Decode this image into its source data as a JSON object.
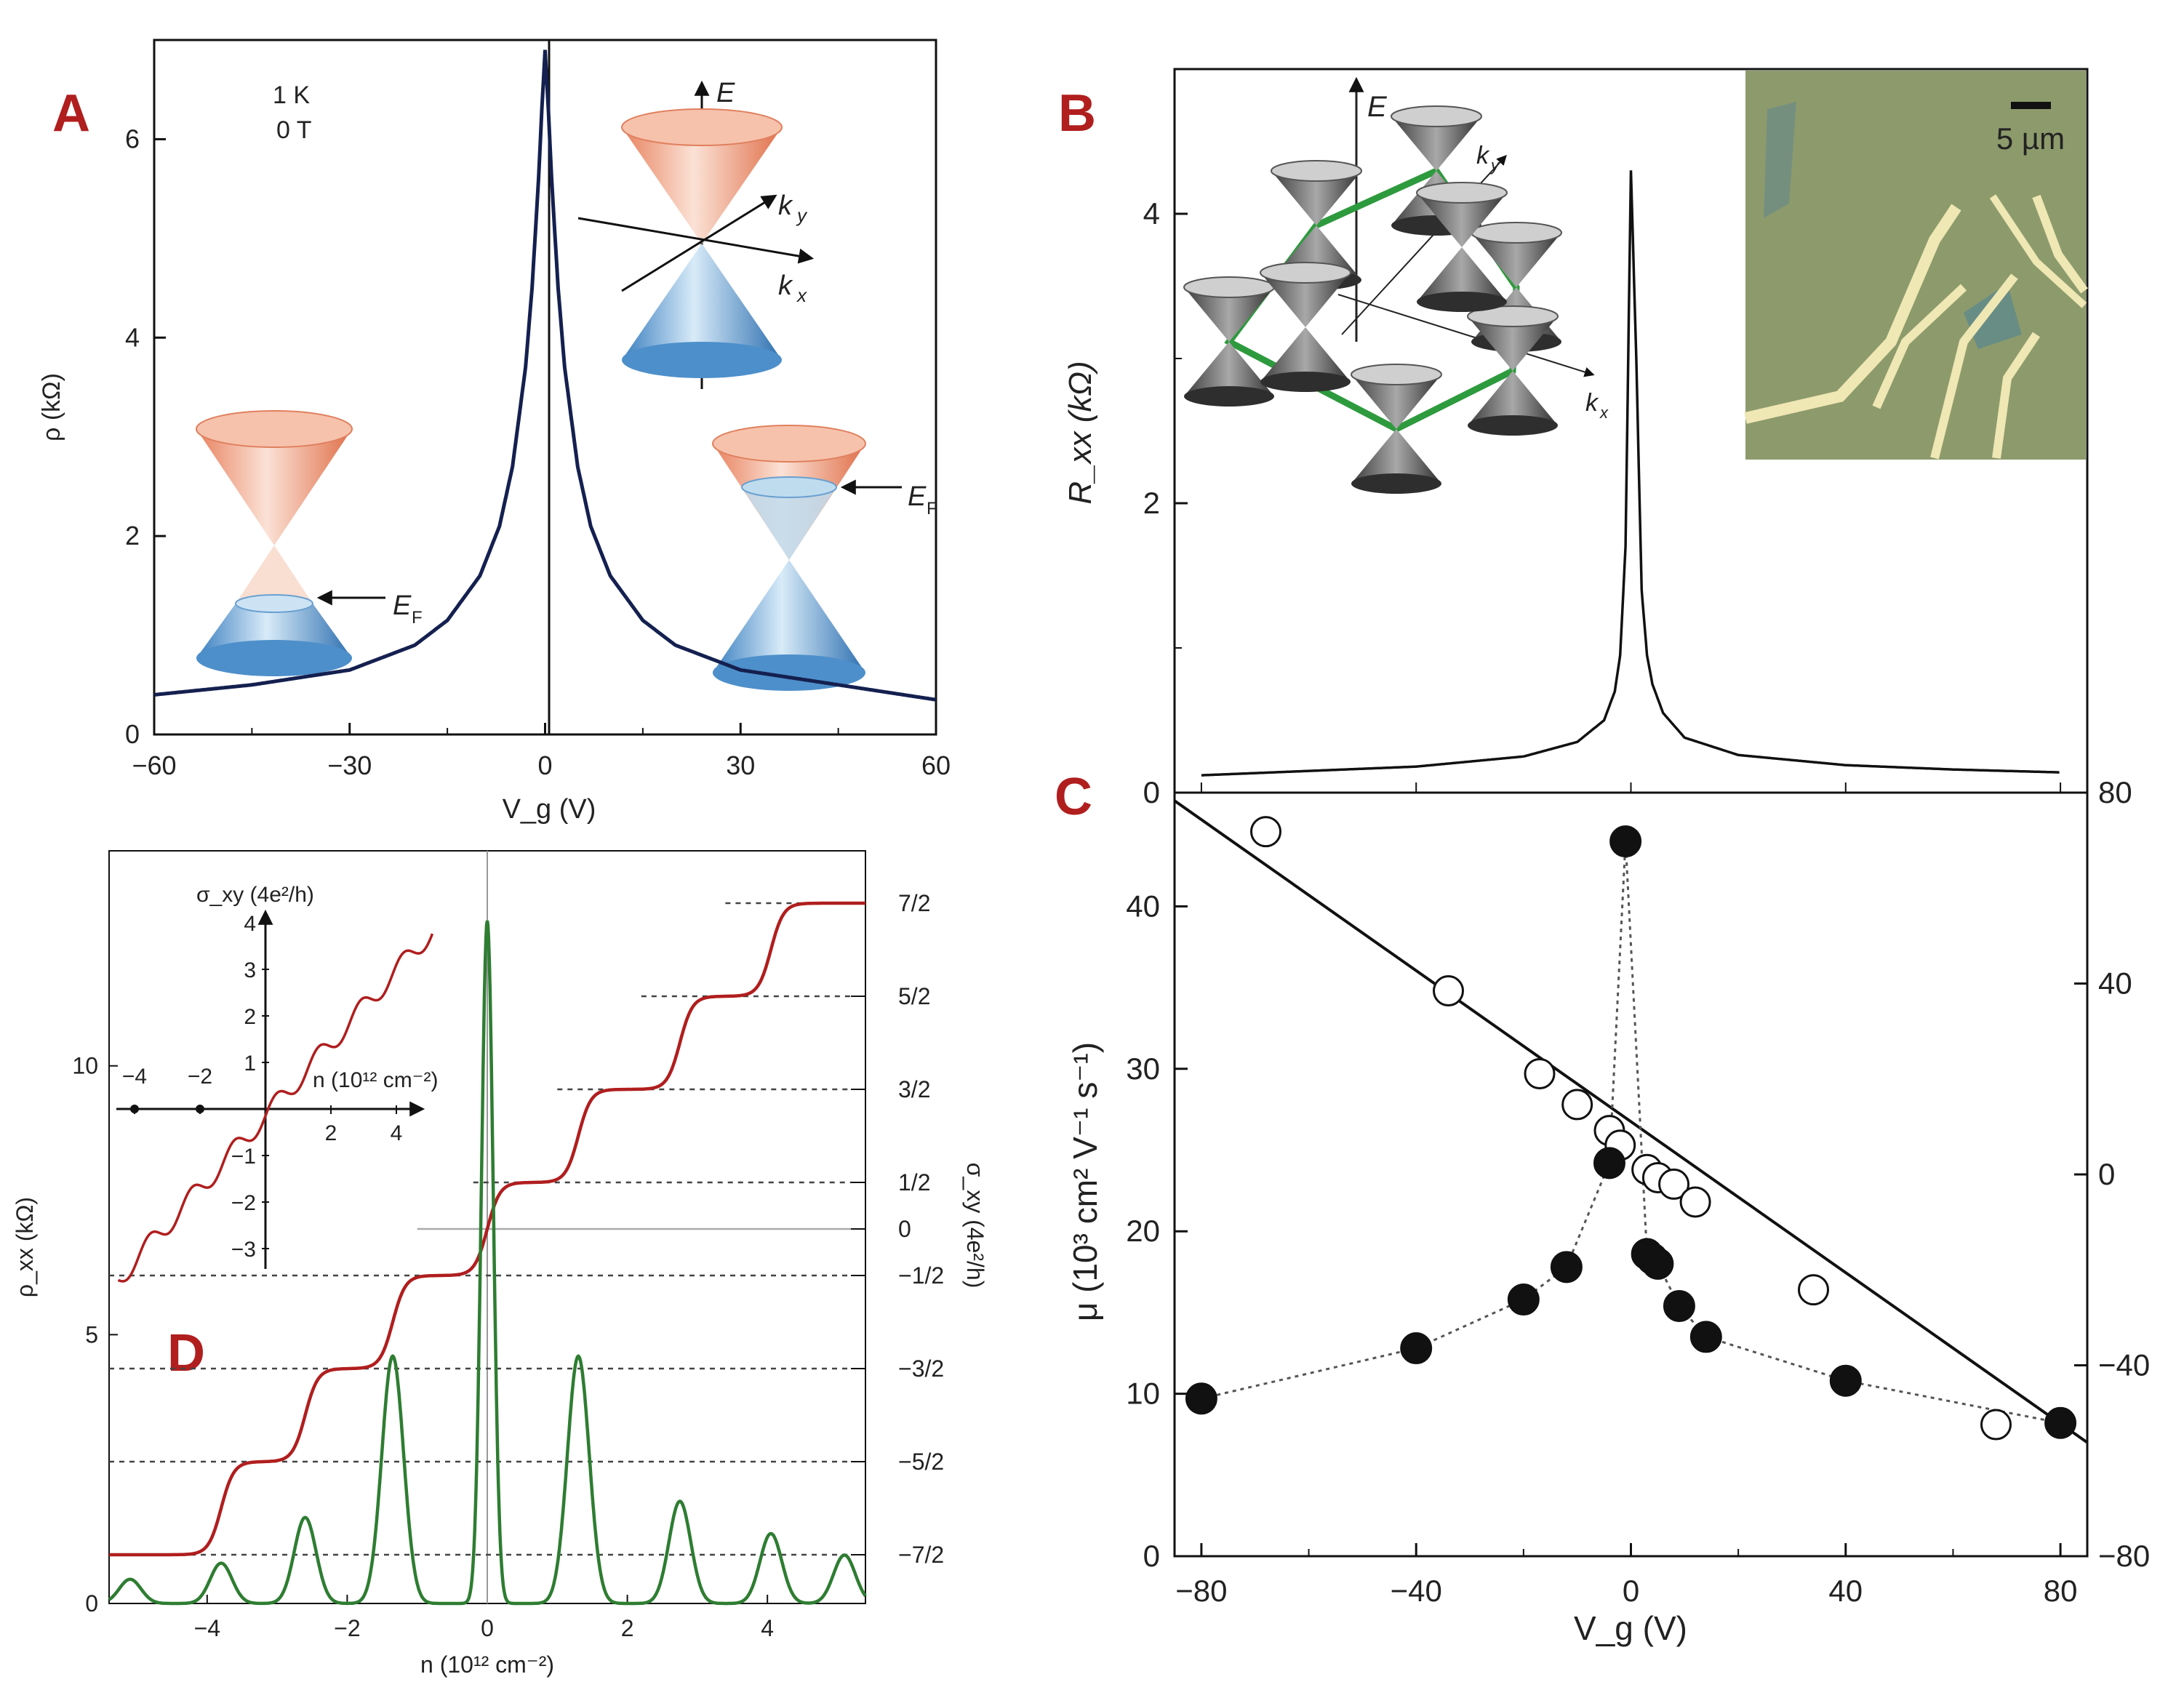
{
  "panels": {
    "A": {
      "letter": "A",
      "conditions": [
        "1 K",
        "0 T"
      ],
      "xlabel": "V_g (V)",
      "ylabel": "ρ (kΩ)",
      "xticks": [
        "−60",
        "−30",
        "0",
        "30",
        "60"
      ],
      "yticks": [
        "0",
        "2",
        "4",
        "6"
      ],
      "cone_labels": {
        "E": "E",
        "kx": "k",
        "kx_sub": "x",
        "ky": "k",
        "ky_sub": "y",
        "EF": "E",
        "EF_sub": "F"
      }
    },
    "B": {
      "letter": "B",
      "ylabel": "R_xx (kΩ)",
      "yticks": [
        "0",
        "2",
        "4"
      ],
      "scalebar": "5 µm",
      "lattice_labels": {
        "E": "E",
        "ky": "k",
        "ky_sub": "y",
        "kx": "k",
        "kx_sub": "x"
      }
    },
    "C": {
      "letter": "C",
      "xlabel": "V_g (V)",
      "ylabel": "μ (10³ cm² V⁻¹ s⁻¹)",
      "xticks": [
        "−80",
        "−40",
        "0",
        "40",
        "80"
      ],
      "yticks": [
        "0",
        "10",
        "20",
        "30",
        "40"
      ],
      "right_yticks": [
        "80",
        "40",
        "0",
        "−40",
        "−80"
      ]
    },
    "D": {
      "letter": "D",
      "xlabel": "n (10¹² cm⁻²)",
      "ylabel": "ρ_xx (kΩ)",
      "right_ylabel": "σ_xy (4e²/h)",
      "xticks": [
        "−4",
        "−2",
        "0",
        "2",
        "4"
      ],
      "yticks": [
        "0",
        "5",
        "10"
      ],
      "plateau_labels": [
        "7/2",
        "5/2",
        "3/2",
        "1/2",
        "0",
        "−1/2",
        "−3/2",
        "−5/2",
        "−7/2"
      ],
      "inset": {
        "ylabel": "σ_xy (4e²/h)",
        "xlabel": "n (10¹² cm⁻²)",
        "yticks_pos": [
          "1",
          "2",
          "3",
          "4"
        ],
        "yticks_neg": [
          "−1",
          "−2",
          "−3"
        ],
        "xticks_neg": [
          "−4",
          "−2"
        ],
        "xticks_pos": [
          "2",
          "4"
        ]
      }
    }
  },
  "colors": {
    "panel_letter": "#b01e1e",
    "curve_A": "#14204f",
    "hall_red": "#b01e1e",
    "rxx_green": "#2e7d32",
    "cone_orange": "#e89575",
    "cone_blue": "#4f90c8",
    "lattice_green": "#2e9a3e",
    "micrograph_bg": "#8c9a6c"
  },
  "chart_data": [
    {
      "type": "line",
      "panel": "A",
      "xlabel": "V_g (V)",
      "ylabel": "ρ (kΩ)",
      "xlim": [
        -60,
        60
      ],
      "ylim": [
        0,
        7
      ],
      "series": [
        {
          "x": [
            -60,
            -45,
            -30,
            -20,
            -15,
            -10,
            -7,
            -5,
            -3,
            -2,
            -1,
            -0.5,
            0,
            0.5,
            1,
            2,
            3,
            5,
            7,
            10,
            15,
            20,
            30,
            45,
            60
          ],
          "values": [
            0.4,
            0.5,
            0.65,
            0.9,
            1.15,
            1.6,
            2.1,
            2.7,
            3.7,
            4.5,
            5.6,
            6.3,
            6.9,
            6.3,
            5.6,
            4.5,
            3.7,
            2.7,
            2.1,
            1.6,
            1.15,
            0.9,
            0.65,
            0.5,
            0.35
          ]
        }
      ]
    },
    {
      "type": "line",
      "panel": "B",
      "ylabel": "R_xx (kΩ)",
      "xlim": [
        -85,
        85
      ],
      "ylim": [
        0,
        5
      ],
      "series": [
        {
          "x": [
            -80,
            -60,
            -40,
            -20,
            -10,
            -5,
            -3,
            -2,
            -1,
            0,
            1,
            2,
            3,
            4,
            6,
            10,
            20,
            40,
            60,
            80
          ],
          "values": [
            0.12,
            0.15,
            0.18,
            0.25,
            0.35,
            0.5,
            0.7,
            0.95,
            1.7,
            4.3,
            3.0,
            1.4,
            0.95,
            0.75,
            0.55,
            0.38,
            0.26,
            0.19,
            0.16,
            0.14
          ]
        }
      ]
    },
    {
      "type": "scatter",
      "panel": "C",
      "xlabel": "V_g (V)",
      "ylabel": "μ (10³ cm² V⁻¹ s⁻¹)",
      "xlim": [
        -85,
        85
      ],
      "ylim": [
        0,
        47
      ],
      "right_ylim": [
        -80,
        80
      ],
      "series": [
        {
          "marker": "filled",
          "connected": "dotted",
          "x": [
            -80,
            -40,
            -20,
            -12,
            -4,
            -1,
            3,
            4,
            5,
            9,
            14,
            40,
            80
          ],
          "values": [
            9.7,
            12.8,
            15.8,
            17.8,
            24.2,
            44,
            18.6,
            18.3,
            18,
            15.4,
            13.5,
            10.8,
            8.2
          ]
        },
        {
          "marker": "open",
          "x": [
            -68,
            -34,
            -17,
            -10,
            -4,
            -2,
            3,
            5,
            8,
            12,
            34,
            68
          ],
          "values": [
            44.6,
            34.8,
            29.7,
            27.8,
            26.2,
            25.3,
            23.8,
            23.3,
            22.9,
            21.8,
            16.4,
            8.1
          ]
        },
        {
          "type": "line",
          "x": [
            -85,
            85
          ],
          "values": [
            46.5,
            7.0
          ]
        }
      ]
    },
    {
      "type": "line",
      "panel": "D",
      "xlabel": "n (10¹² cm⁻²)",
      "ylabel": "ρ_xx (kΩ)",
      "xlim": [
        -5.4,
        5.4
      ],
      "ylim": [
        0,
        14
      ],
      "series": [
        {
          "axis": "right",
          "plateaus": [
            -3.5,
            -2.5,
            -1.5,
            -0.5,
            0.5,
            1.5,
            2.5,
            3.5
          ]
        },
        {
          "axis": "left",
          "peaks_x": [
            -5.1,
            -3.8,
            -2.6,
            -1.35,
            0,
            1.3,
            2.75,
            4.05,
            5.1
          ],
          "peaks_y": [
            0.45,
            0.75,
            1.6,
            4.6,
            12.7,
            4.6,
            1.9,
            1.3,
            0.9
          ]
        }
      ]
    }
  ]
}
